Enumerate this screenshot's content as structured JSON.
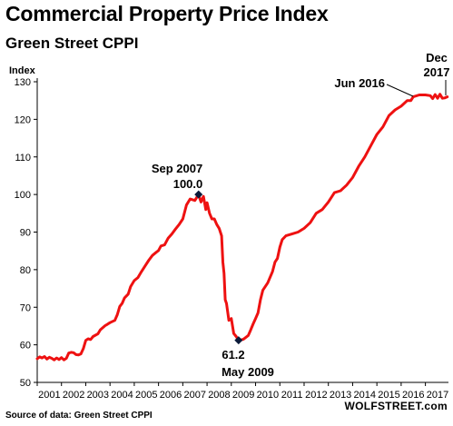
{
  "chart_data": {
    "type": "line",
    "title": "Commercial Property Price Index",
    "subtitle": "Green Street CPPI",
    "ylabel": "Index",
    "ylim": [
      50,
      130
    ],
    "yticks": [
      50,
      60,
      70,
      80,
      90,
      100,
      110,
      120,
      130
    ],
    "xlim": [
      2001.0,
      2017.95
    ],
    "xticks": [
      "2001",
      "2002",
      "2003",
      "2004",
      "2005",
      "2006",
      "2007",
      "2008",
      "2009",
      "2010",
      "2011",
      "2012",
      "2013",
      "2014",
      "2015",
      "2016",
      "2017"
    ],
    "grid": false,
    "line_color": "#ee1111",
    "series": [
      {
        "x": [
          2001.0,
          2001.1,
          2001.2,
          2001.3,
          2001.4,
          2001.5,
          2001.6,
          2001.7,
          2001.8,
          2001.9,
          2002.0,
          2002.1,
          2002.2,
          2002.3,
          2002.4,
          2002.5,
          2002.6,
          2002.7,
          2002.8,
          2002.9,
          2003.0,
          2003.1,
          2003.2,
          2003.3,
          2003.5,
          2003.6,
          2003.8,
          2003.9,
          2004.0,
          2004.2,
          2004.3,
          2004.4,
          2004.5,
          2004.6,
          2004.75,
          2004.85,
          2005.0,
          2005.15,
          2005.3,
          2005.45,
          2005.6,
          2005.75,
          2005.9,
          2006.0,
          2006.1,
          2006.25,
          2006.4,
          2006.55,
          2006.7,
          2006.85,
          2007.0,
          2007.15,
          2007.3,
          2007.5,
          2007.65,
          2007.75,
          2007.85,
          2007.95,
          2008.0,
          2008.1,
          2008.2,
          2008.3,
          2008.4,
          2008.5,
          2008.6,
          2008.65,
          2008.7,
          2008.75,
          2008.8,
          2008.9,
          2009.0,
          2009.1,
          2009.2,
          2009.3,
          2009.35,
          2009.5,
          2009.6,
          2009.7,
          2009.8,
          2009.9,
          2010.0,
          2010.1,
          2010.2,
          2010.3,
          2010.5,
          2010.7,
          2010.8,
          2010.9,
          2011.0,
          2011.1,
          2011.25,
          2011.5,
          2011.75,
          2012.0,
          2012.25,
          2012.5,
          2012.75,
          2013.0,
          2013.25,
          2013.5,
          2013.75,
          2014.0,
          2014.25,
          2014.5,
          2014.75,
          2015.0,
          2015.25,
          2015.5,
          2015.75,
          2016.0,
          2016.25,
          2016.4,
          2016.5,
          2016.75,
          2017.0,
          2017.2,
          2017.3,
          2017.4,
          2017.5,
          2017.6,
          2017.7,
          2017.8,
          2017.9
        ],
        "y": [
          56.3,
          56.8,
          56.5,
          56.9,
          56.2,
          56.7,
          56.4,
          56.0,
          56.5,
          56.1,
          56.6,
          56.0,
          56.4,
          57.8,
          58.0,
          57.9,
          57.4,
          57.3,
          57.6,
          59.0,
          61.2,
          61.6,
          61.4,
          62.2,
          62.9,
          64.0,
          65.1,
          65.5,
          65.9,
          66.5,
          68.0,
          70.2,
          71.0,
          72.5,
          73.5,
          75.5,
          77.1,
          77.9,
          79.5,
          81.0,
          82.5,
          83.8,
          84.6,
          85.1,
          86.3,
          86.6,
          88.4,
          89.5,
          90.8,
          92.0,
          93.5,
          97.2,
          98.8,
          98.4,
          100.0,
          98.0,
          99.5,
          96.0,
          97.8,
          95.0,
          93.5,
          93.5,
          92.0,
          91.0,
          89.0,
          82.0,
          79.0,
          72.0,
          71.0,
          66.5,
          67.0,
          63.0,
          62.2,
          61.2,
          61.2,
          61.5,
          62.0,
          62.5,
          64.0,
          65.6,
          67.0,
          68.5,
          72.0,
          74.5,
          76.5,
          79.5,
          82.0,
          83.0,
          86.0,
          88.0,
          89.0,
          89.5,
          90.0,
          91.0,
          92.5,
          95.0,
          96.0,
          98.0,
          100.5,
          101.0,
          102.5,
          104.5,
          107.5,
          110.0,
          113.0,
          116.0,
          118.0,
          121.0,
          122.5,
          123.5,
          125.0,
          125.0,
          126.0,
          126.5,
          126.5,
          126.3,
          125.5,
          126.6,
          125.6,
          126.7,
          125.6,
          125.7,
          126.0
        ]
      }
    ],
    "markers": [
      {
        "x": 2007.65,
        "y": 100.0
      },
      {
        "x": 2009.3,
        "y": 61.2
      }
    ],
    "annotations": [
      {
        "text": "Sep 2007",
        "x": 2007.65,
        "y": 100.0,
        "position": "above"
      },
      {
        "text": "100.0",
        "x": 2007.65,
        "y": 100.0,
        "position": "above"
      },
      {
        "text": "61.2",
        "x": 2009.3,
        "y": 61.2,
        "position": "below"
      },
      {
        "text": "May 2009",
        "x": 2009.3,
        "y": 61.2,
        "position": "below"
      },
      {
        "text": "Jun 2016",
        "x": 2016.4,
        "y": 126.0,
        "position": "left"
      },
      {
        "text": "Dec",
        "x": 2017.9,
        "y": 126.0,
        "position": "above"
      },
      {
        "text": "2017",
        "x": 2017.9,
        "y": 126.0,
        "position": "above"
      }
    ]
  },
  "source": "Source of data: Green Street CPPI",
  "brand": "WOLFSTREET.com"
}
